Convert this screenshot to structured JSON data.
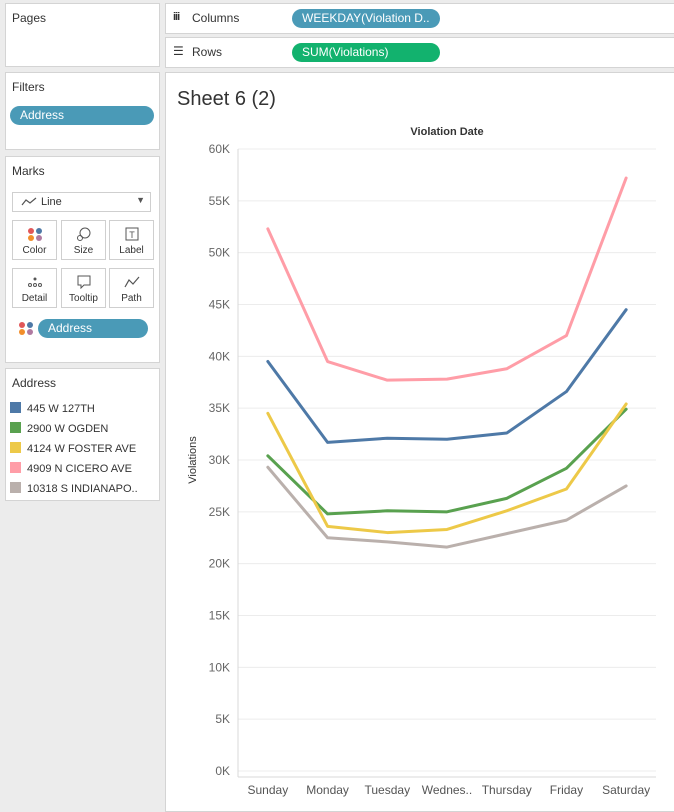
{
  "shelves": {
    "columns_label": "Columns",
    "columns_pill": "WEEKDAY(Violation D..",
    "rows_label": "Rows",
    "rows_pill": "SUM(Violations)"
  },
  "pages": {
    "title": "Pages"
  },
  "filters": {
    "title": "Filters",
    "pill": "Address"
  },
  "marks": {
    "title": "Marks",
    "type": "Line",
    "buttons": {
      "color": "Color",
      "size": "Size",
      "label": "Label",
      "detail": "Detail",
      "tooltip": "Tooltip",
      "path": "Path"
    },
    "pill": "Address"
  },
  "legend": {
    "title": "Address",
    "items": [
      {
        "label": "445 W 127TH",
        "color": "#4e79a7"
      },
      {
        "label": "2900 W OGDEN",
        "color": "#59a14f"
      },
      {
        "label": "4124 W FOSTER AVE",
        "color": "#edc948"
      },
      {
        "label": "4909 N CICERO AVE",
        "color": "#ff9da7"
      },
      {
        "label": "10318 S INDIANAPO..",
        "color": "#bab0ac"
      }
    ]
  },
  "sheet": {
    "title": "Sheet 6 (2)"
  },
  "chart_data": {
    "type": "line",
    "title": "Violation Date",
    "xlabel": "",
    "ylabel": "Violations",
    "categories": [
      "Sunday",
      "Monday",
      "Tuesday",
      "Wednes..",
      "Thursday",
      "Friday",
      "Saturday"
    ],
    "ylim": [
      0,
      60000
    ],
    "yticks": [
      0,
      5000,
      10000,
      15000,
      20000,
      25000,
      30000,
      35000,
      40000,
      45000,
      50000,
      55000,
      60000
    ],
    "ytick_labels": [
      "0K",
      "5K",
      "10K",
      "15K",
      "20K",
      "25K",
      "30K",
      "35K",
      "40K",
      "45K",
      "50K",
      "55K",
      "60K"
    ],
    "grid": true,
    "series": [
      {
        "name": "445 W 127TH",
        "color": "#4e79a7",
        "values": [
          39500,
          31700,
          32100,
          32000,
          32600,
          36600,
          44500
        ]
      },
      {
        "name": "2900 W OGDEN",
        "color": "#59a14f",
        "values": [
          30400,
          24800,
          25100,
          25000,
          26300,
          29200,
          34900
        ]
      },
      {
        "name": "4124 W FOSTER AVE",
        "color": "#edc948",
        "values": [
          34500,
          23600,
          23000,
          23300,
          25100,
          27200,
          35400
        ]
      },
      {
        "name": "4909 N CICERO AVE",
        "color": "#ff9da7",
        "values": [
          52300,
          39500,
          37700,
          37800,
          38800,
          42000,
          57200
        ]
      },
      {
        "name": "10318 S INDIANAPO..",
        "color": "#bab0ac",
        "values": [
          29300,
          22500,
          22100,
          21600,
          22900,
          24200,
          27500
        ]
      }
    ]
  }
}
